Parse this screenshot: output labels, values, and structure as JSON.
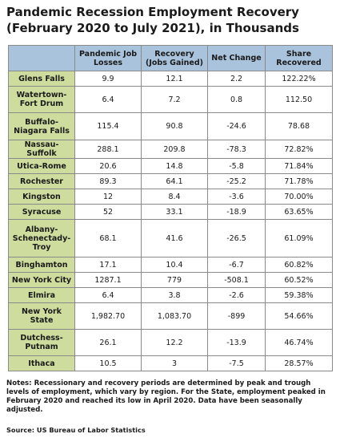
{
  "title": "Pandemic Recession Employment Recovery (February 2020 to July 2021), in Thousands",
  "chart_data": {
    "type": "table",
    "columns": [
      "",
      "Pandemic Job Losses",
      "Recovery (Jobs Gained)",
      "Net Change",
      "Share Recovered"
    ],
    "rows": [
      {
        "region": "Glens Falls",
        "losses": "9.9",
        "recovery": "12.1",
        "net": "2.2",
        "share": "122.22%"
      },
      {
        "region": "Watertown-Fort Drum",
        "losses": "6.4",
        "recovery": "7.2",
        "net": "0.8",
        "share": "112.50"
      },
      {
        "region": "Buffalo-Niagara Falls",
        "losses": "115.4",
        "recovery": "90.8",
        "net": "-24.6",
        "share": "78.68"
      },
      {
        "region": "Nassau-Suffolk",
        "losses": "288.1",
        "recovery": "209.8",
        "net": "-78.3",
        "share": "72.82%"
      },
      {
        "region": "Utica-Rome",
        "losses": "20.6",
        "recovery": "14.8",
        "net": "-5.8",
        "share": "71.84%"
      },
      {
        "region": "Rochester",
        "losses": "89.3",
        "recovery": "64.1",
        "net": "-25.2",
        "share": "71.78%"
      },
      {
        "region": "Kingston",
        "losses": "12",
        "recovery": "8.4",
        "net": "-3.6",
        "share": "70.00%"
      },
      {
        "region": "Syracuse",
        "losses": "52",
        "recovery": "33.1",
        "net": "-18.9",
        "share": "63.65%"
      },
      {
        "region": "Albany-Schenectady-Troy",
        "losses": "68.1",
        "recovery": "41.6",
        "net": "-26.5",
        "share": "61.09%"
      },
      {
        "region": "Binghamton",
        "losses": "17.1",
        "recovery": "10.4",
        "net": "-6.7",
        "share": "60.82%"
      },
      {
        "region": "New York City",
        "losses": "1287.1",
        "recovery": "779",
        "net": "-508.1",
        "share": "60.52%"
      },
      {
        "region": "Elmira",
        "losses": "6.4",
        "recovery": "3.8",
        "net": "-2.6",
        "share": "59.38%"
      },
      {
        "region": "New York State",
        "losses": "1,982.70",
        "recovery": "1,083.70",
        "net": "-899",
        "share": "54.66%"
      },
      {
        "region": "Dutchess-Putnam",
        "losses": "26.1",
        "recovery": "12.2",
        "net": "-13.9",
        "share": "46.74%"
      },
      {
        "region": "Ithaca",
        "losses": "10.5",
        "recovery": "3",
        "net": "-7.5",
        "share": "28.57%"
      }
    ]
  },
  "notes": "Notes: Recessionary and recovery periods are determined by peak and trough levels of employment, which vary by region. For the State, employment peaked in February 2020 and reached its low in April 2020. Data have been seasonally adjusted.",
  "source": "Source: US Bureau of Labor Statistics",
  "colors": {
    "header_fill": "#a9c3dc",
    "label_fill": "#cedd9e",
    "border": "#8a8a8a"
  }
}
